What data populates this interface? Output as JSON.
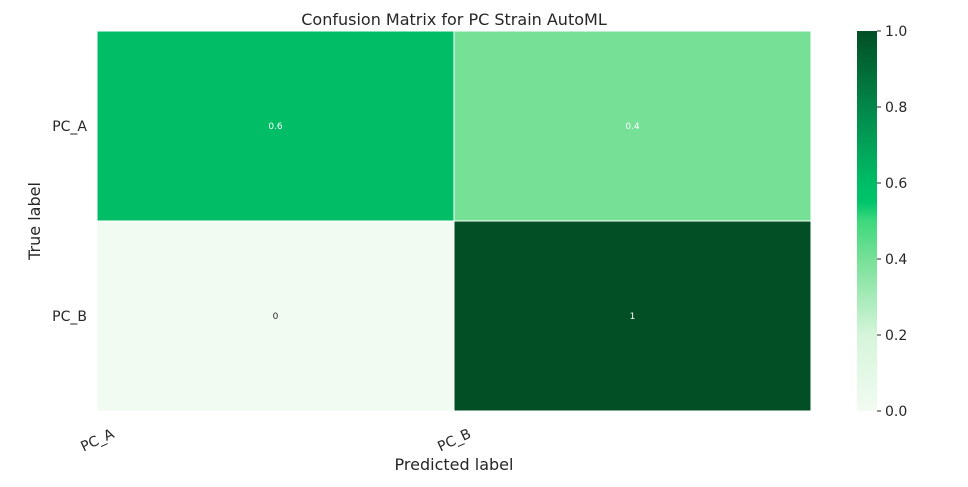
{
  "chart_data": {
    "type": "heatmap",
    "title": "Confusion Matrix for PC Strain AutoML",
    "xlabel": "Predicted label",
    "ylabel": "True label",
    "x_categories": [
      "PC_A",
      "PC_B"
    ],
    "y_categories": [
      "PC_A",
      "PC_B"
    ],
    "values": [
      [
        0.6,
        0.4
      ],
      [
        0,
        1
      ]
    ],
    "value_labels": [
      [
        "0.6",
        "0.4"
      ],
      [
        "0",
        "1"
      ]
    ],
    "colorbar": {
      "range": [
        0.0,
        1.0
      ],
      "ticks": [
        "0.0",
        "0.2",
        "0.4",
        "0.6",
        "0.8",
        "1.0"
      ],
      "colormap": "Greens"
    },
    "colors": {
      "low": "#f2fbf2",
      "c0_4": "#76e096",
      "mid": "#00bd66",
      "high": "#024e25",
      "text_dark": "#262626",
      "text_light": "#ffffff"
    }
  }
}
